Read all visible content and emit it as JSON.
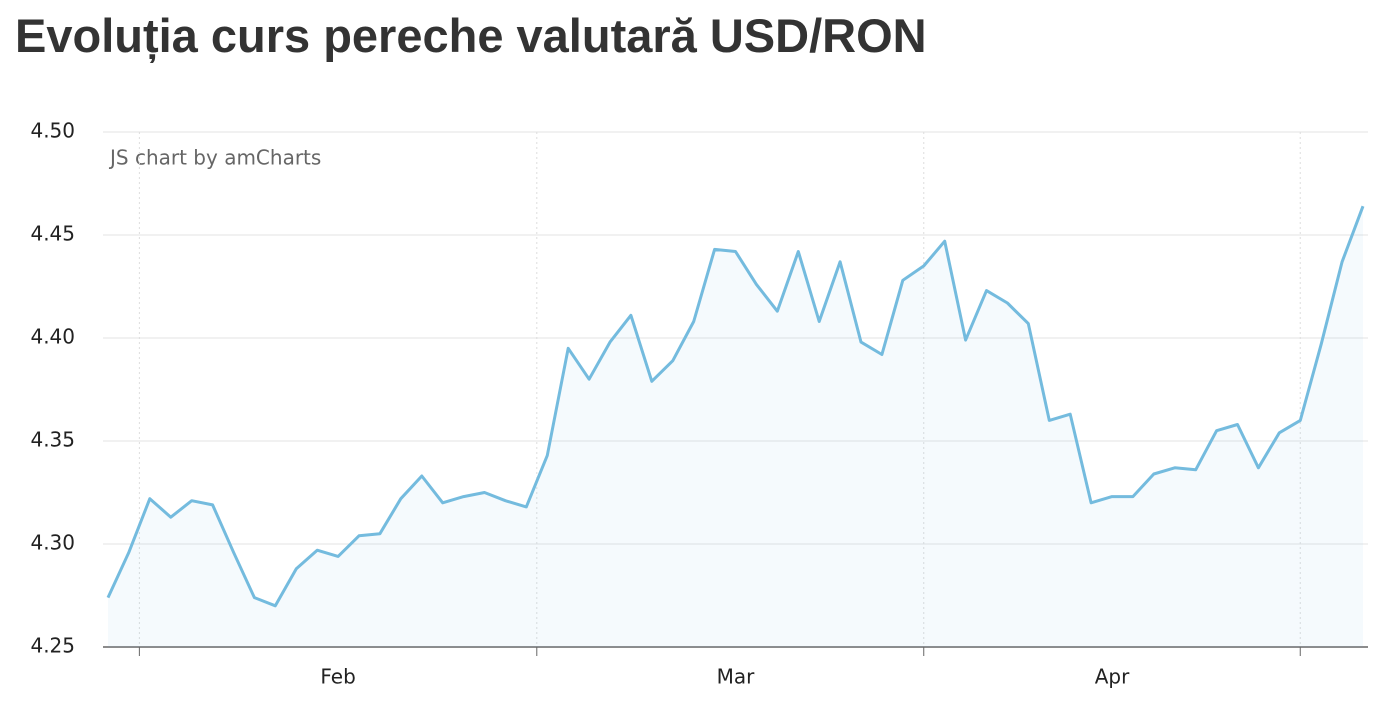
{
  "chart_data": {
    "type": "line",
    "title": "Evoluția curs pereche valutară USD/RON",
    "watermark": "JS chart by amCharts",
    "categories": [
      null,
      null,
      null,
      null,
      null,
      null,
      null,
      null,
      null,
      null,
      null,
      "Feb",
      null,
      null,
      null,
      null,
      null,
      null,
      null,
      null,
      null,
      null,
      null,
      null,
      null,
      null,
      null,
      null,
      null,
      null,
      "Mar",
      null,
      null,
      null,
      null,
      null,
      null,
      null,
      null,
      null,
      null,
      null,
      null,
      null,
      null,
      null,
      null,
      null,
      "Apr",
      null,
      null,
      null,
      null,
      null,
      null,
      null,
      null,
      null,
      null,
      null,
      null
    ],
    "series": [
      {
        "name": "USD/RON",
        "color": "#74bbde",
        "values": [
          4.274,
          4.296,
          4.322,
          4.313,
          4.321,
          4.319,
          4.296,
          4.274,
          4.27,
          4.288,
          4.297,
          4.294,
          4.304,
          4.305,
          4.322,
          4.333,
          4.32,
          4.323,
          4.325,
          4.321,
          4.318,
          4.343,
          4.395,
          4.38,
          4.398,
          4.411,
          4.379,
          4.389,
          4.408,
          4.443,
          4.442,
          4.426,
          4.413,
          4.442,
          4.408,
          4.437,
          4.398,
          4.392,
          4.428,
          4.435,
          4.447,
          4.399,
          4.423,
          4.417,
          4.407,
          4.36,
          4.363,
          4.32,
          4.323,
          4.323,
          4.334,
          4.337,
          4.336,
          4.355,
          4.358,
          4.337,
          4.354,
          4.36,
          4.397,
          4.437,
          4.464
        ]
      }
    ],
    "ylim": [
      4.25,
      4.5
    ],
    "yticks": [
      {
        "value": 4.25,
        "label": "4.25"
      },
      {
        "value": 4.3,
        "label": "4.30"
      },
      4.35,
      {
        "value": 4.4,
        "label": "4.40"
      },
      4.45,
      {
        "value": 4.5,
        "label": "4.50"
      }
    ],
    "grid": true,
    "area": true
  }
}
